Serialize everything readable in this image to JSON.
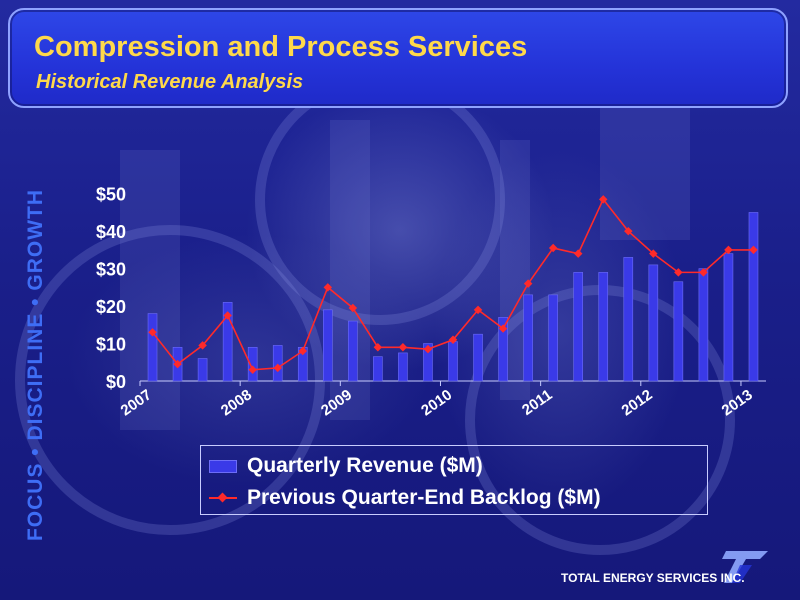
{
  "header": {
    "title": "Compression and Process Services",
    "subtitle": "Historical Revenue Analysis"
  },
  "side_text": "FOCUS • DISCIPLINE • GROWTH",
  "company": "TOTAL ENERGY SERVICES INC.",
  "colors": {
    "title": "#ffd94a",
    "bar": "#3a3ae8",
    "line": "#ff2a2a",
    "side_text": "#3e6df5"
  },
  "chart_data": {
    "type": "bar",
    "title": "",
    "xlabel": "",
    "ylabel": "",
    "ylim": [
      0,
      55
    ],
    "y_ticks": [
      "$0",
      "$10",
      "$20",
      "$30",
      "$40",
      "$50"
    ],
    "x_tick_labels": [
      "2007",
      "2008",
      "2009",
      "2010",
      "2011",
      "2012",
      "2013"
    ],
    "categories": [
      "2007-Q1",
      "2007-Q2",
      "2007-Q3",
      "2007-Q4",
      "2008-Q1",
      "2008-Q2",
      "2008-Q3",
      "2008-Q4",
      "2009-Q1",
      "2009-Q2",
      "2009-Q3",
      "2009-Q4",
      "2010-Q1",
      "2010-Q2",
      "2010-Q3",
      "2010-Q4",
      "2011-Q1",
      "2011-Q2",
      "2011-Q3",
      "2011-Q4",
      "2012-Q1",
      "2012-Q2",
      "2012-Q3",
      "2012-Q4",
      "2013-Q1"
    ],
    "series": [
      {
        "name": "Quarterly Revenue ($M)",
        "kind": "bar",
        "values": [
          18,
          9,
          6,
          21,
          9,
          9.5,
          9,
          19,
          16,
          6.5,
          7.5,
          10,
          10.5,
          12.5,
          17,
          23,
          23,
          29,
          29,
          33,
          31,
          26.5,
          30,
          34,
          45
        ]
      },
      {
        "name": "Previous Quarter-End Backlog ($M)",
        "kind": "line",
        "values": [
          13,
          4.5,
          9.5,
          17.5,
          3,
          3.5,
          8,
          25,
          19.5,
          9,
          9,
          8.5,
          11,
          19,
          14,
          26,
          35.5,
          34,
          48.5,
          40,
          34,
          29,
          29,
          35,
          35
        ]
      }
    ],
    "legend_position": "bottom"
  }
}
